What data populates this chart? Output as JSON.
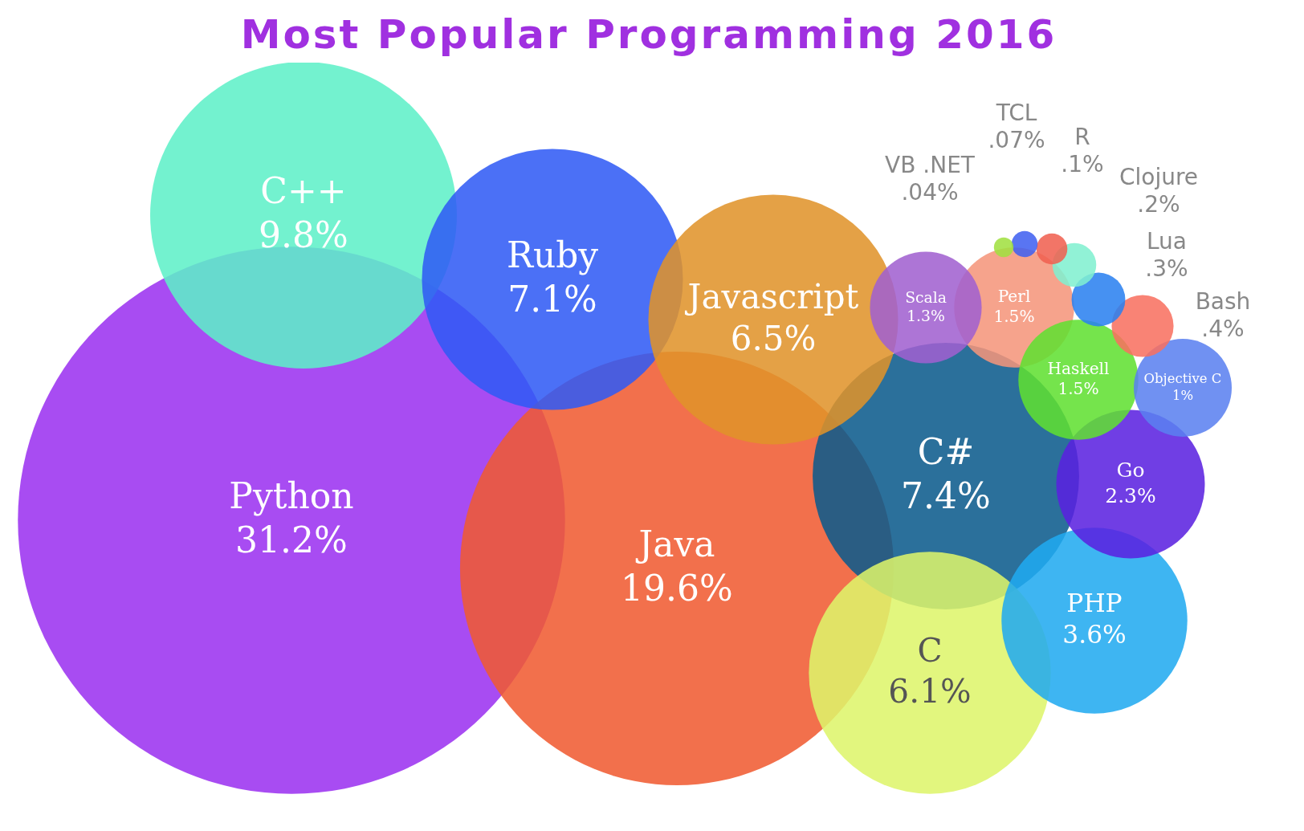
{
  "chart_data": {
    "type": "other",
    "title": "Most Popular Programming 2016",
    "categories": [
      "Python",
      "Java",
      "C++",
      "C#",
      "Ruby",
      "Javascript",
      "C",
      "PHP",
      "Go",
      "Perl",
      "Haskell",
      "Scala",
      "Objective C",
      "Bash",
      "Lua",
      "Clojure",
      "R",
      "TCL",
      "VB .NET"
    ],
    "values": [
      31.2,
      19.6,
      9.8,
      7.4,
      7.1,
      6.5,
      6.1,
      3.6,
      2.3,
      1.5,
      1.5,
      1.3,
      1,
      0.4,
      0.3,
      0.2,
      0.1,
      0.07,
      0.04
    ],
    "value_labels": [
      "31.2%",
      "19.6%",
      "9.8%",
      "7.4%",
      "7.1%",
      "6.5%",
      "6.1%",
      "3.6%",
      "2.3%",
      "1.5%",
      "1.5%",
      "1.3%",
      "1%",
      ".4%",
      ".3%",
      ".2%",
      ".1%",
      ".07%",
      ".04%"
    ],
    "colors": [
      "#9b30f0",
      "#f05a30",
      "#5ef0c8",
      "#0a5a8c",
      "#2f5af5",
      "#e0922a",
      "#ddf56a",
      "#20aaf0",
      "#5a20e0",
      "#f5957a",
      "#60e030",
      "#a060d0",
      "#5a80f0",
      "#f87060",
      "#2a80f0",
      "#80f0d0",
      "#f06050",
      "#4060f0",
      "#a0e040"
    ]
  }
}
